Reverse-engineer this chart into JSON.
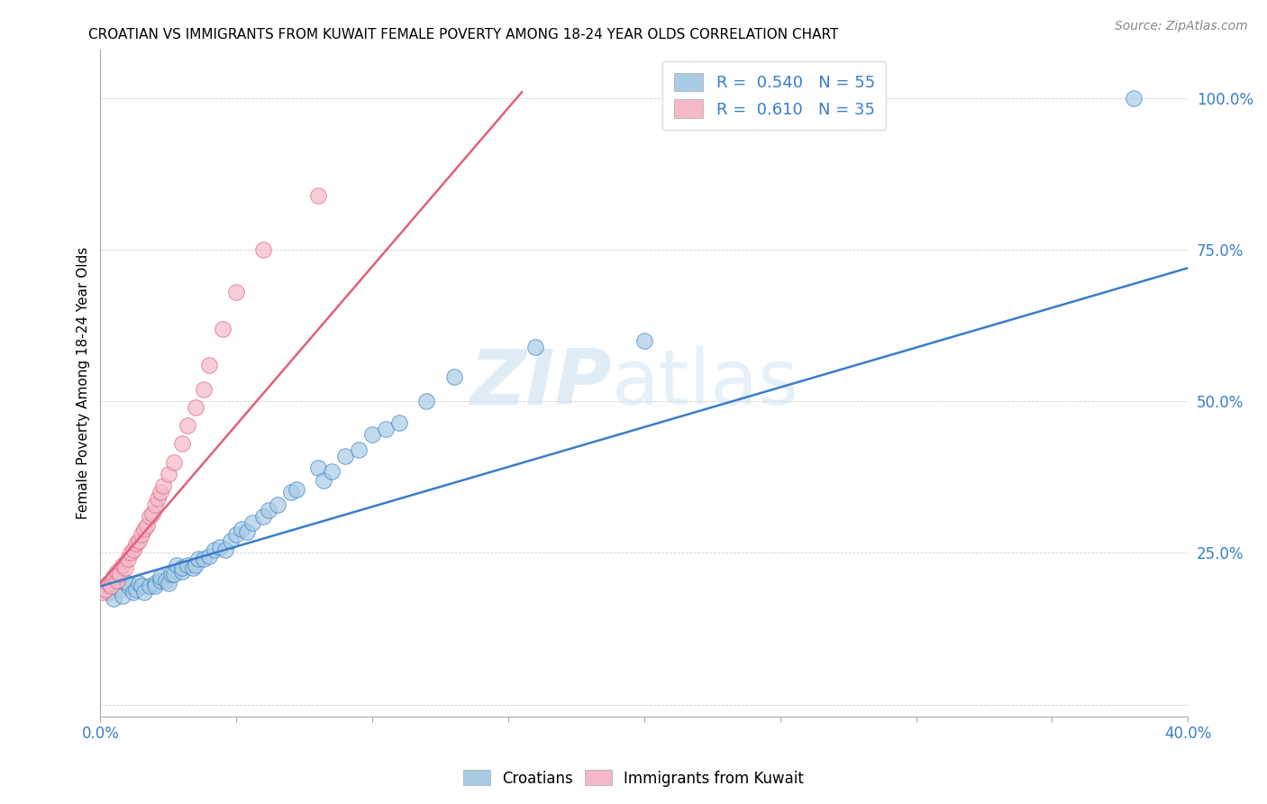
{
  "title": "CROATIAN VS IMMIGRANTS FROM KUWAIT FEMALE POVERTY AMONG 18-24 YEAR OLDS CORRELATION CHART",
  "source": "Source: ZipAtlas.com",
  "ylabel": "Female Poverty Among 18-24 Year Olds",
  "xlim": [
    0.0,
    0.4
  ],
  "ylim": [
    -0.02,
    1.08
  ],
  "blue_color": "#a8cce4",
  "pink_color": "#f4b8c8",
  "blue_line_color": "#3a7dc9",
  "pink_line_color": "#e0607a",
  "R_blue": 0.54,
  "N_blue": 55,
  "R_pink": 0.61,
  "N_pink": 35,
  "watermark_zip": "ZIP",
  "watermark_atlas": "atlas",
  "blue_trend": [
    0.0,
    0.4,
    0.195,
    0.72
  ],
  "pink_trend": [
    0.0,
    0.155,
    0.2,
    1.01
  ],
  "croatians_x": [
    0.003,
    0.005,
    0.007,
    0.008,
    0.01,
    0.01,
    0.012,
    0.013,
    0.014,
    0.015,
    0.016,
    0.018,
    0.02,
    0.02,
    0.022,
    0.022,
    0.024,
    0.025,
    0.026,
    0.027,
    0.028,
    0.03,
    0.03,
    0.032,
    0.034,
    0.035,
    0.036,
    0.038,
    0.04,
    0.042,
    0.044,
    0.046,
    0.048,
    0.05,
    0.052,
    0.054,
    0.056,
    0.06,
    0.062,
    0.065,
    0.07,
    0.072,
    0.08,
    0.082,
    0.085,
    0.09,
    0.095,
    0.1,
    0.105,
    0.11,
    0.12,
    0.13,
    0.16,
    0.2,
    0.38
  ],
  "croatians_y": [
    0.185,
    0.175,
    0.19,
    0.18,
    0.195,
    0.2,
    0.185,
    0.19,
    0.2,
    0.195,
    0.185,
    0.195,
    0.2,
    0.195,
    0.205,
    0.21,
    0.205,
    0.2,
    0.215,
    0.215,
    0.23,
    0.22,
    0.225,
    0.23,
    0.225,
    0.23,
    0.24,
    0.24,
    0.245,
    0.255,
    0.26,
    0.255,
    0.27,
    0.28,
    0.29,
    0.285,
    0.3,
    0.31,
    0.32,
    0.33,
    0.35,
    0.355,
    0.39,
    0.37,
    0.385,
    0.41,
    0.42,
    0.445,
    0.455,
    0.465,
    0.5,
    0.54,
    0.59,
    0.6,
    1.0
  ],
  "kuwait_x": [
    0.001,
    0.002,
    0.003,
    0.004,
    0.005,
    0.006,
    0.006,
    0.007,
    0.008,
    0.009,
    0.01,
    0.011,
    0.012,
    0.013,
    0.014,
    0.015,
    0.016,
    0.017,
    0.018,
    0.019,
    0.02,
    0.021,
    0.022,
    0.023,
    0.025,
    0.027,
    0.03,
    0.032,
    0.035,
    0.038,
    0.04,
    0.045,
    0.05,
    0.06,
    0.08
  ],
  "kuwait_y": [
    0.185,
    0.19,
    0.2,
    0.195,
    0.21,
    0.205,
    0.22,
    0.215,
    0.23,
    0.225,
    0.24,
    0.25,
    0.255,
    0.265,
    0.27,
    0.28,
    0.29,
    0.295,
    0.31,
    0.315,
    0.33,
    0.34,
    0.35,
    0.36,
    0.38,
    0.4,
    0.43,
    0.46,
    0.49,
    0.52,
    0.56,
    0.62,
    0.68,
    0.75,
    0.84
  ]
}
